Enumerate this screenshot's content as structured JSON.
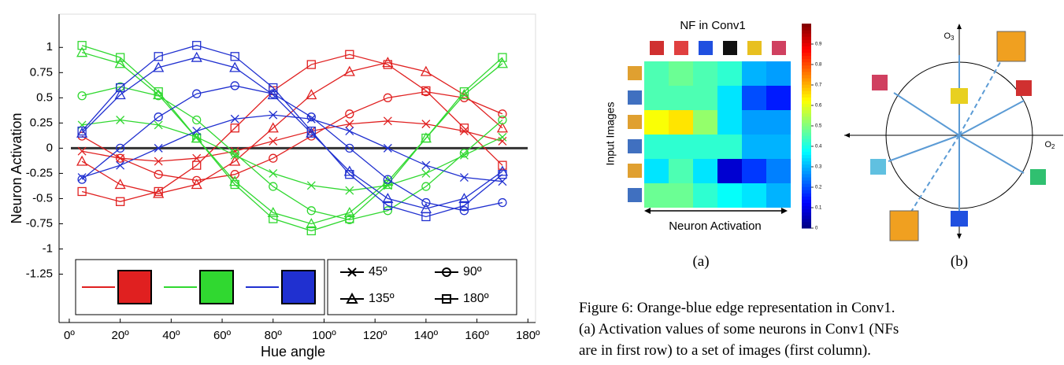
{
  "chart_data": [
    {
      "type": "line",
      "xlabel": "Hue angle",
      "ylabel": "Neuron Activation",
      "xlim": [
        -4,
        183
      ],
      "ylim": [
        -1.73,
        1.33
      ],
      "xticks": [
        {
          "value": 0,
          "label": "0º"
        },
        {
          "value": 20,
          "label": "20º"
        },
        {
          "value": 40,
          "label": "40º"
        },
        {
          "value": 60,
          "label": "60º"
        },
        {
          "value": 80,
          "label": "80º"
        },
        {
          "value": 100,
          "label": "100º"
        },
        {
          "value": 120,
          "label": "120º"
        },
        {
          "value": 140,
          "label": "140º"
        },
        {
          "value": 160,
          "label": "160º"
        },
        {
          "value": 180,
          "label": "180º"
        }
      ],
      "yticks": [
        1,
        0.75,
        0.5,
        0.25,
        0,
        -0.25,
        -0.5,
        -0.75,
        -1,
        -1.25
      ],
      "x": [
        5,
        20,
        35,
        50,
        65,
        80,
        95,
        110,
        125,
        140,
        155,
        170
      ],
      "series": [
        {
          "color": "#e02020",
          "marker": "x",
          "values": [
            -0.03,
            -0.1,
            -0.13,
            -0.1,
            -0.03,
            0.07,
            0.17,
            0.24,
            0.27,
            0.24,
            0.17,
            0.07
          ]
        },
        {
          "color": "#e02020",
          "marker": "circle",
          "values": [
            0.12,
            -0.1,
            -0.26,
            -0.32,
            -0.26,
            -0.1,
            0.12,
            0.34,
            0.5,
            0.56,
            0.5,
            0.34
          ]
        },
        {
          "color": "#e02020",
          "marker": "triangle",
          "values": [
            -0.13,
            -0.36,
            -0.45,
            -0.36,
            -0.13,
            0.2,
            0.53,
            0.76,
            0.85,
            0.76,
            0.53,
            0.2
          ]
        },
        {
          "color": "#e02020",
          "marker": "square",
          "values": [
            -0.43,
            -0.53,
            -0.43,
            -0.17,
            0.2,
            0.57,
            0.83,
            0.93,
            0.83,
            0.57,
            0.2,
            -0.17
          ]
        },
        {
          "color": "#30d830",
          "marker": "x",
          "values": [
            0.23,
            0.28,
            0.23,
            0.11,
            -0.07,
            -0.25,
            -0.37,
            -0.42,
            -0.37,
            -0.25,
            -0.07,
            0.11
          ]
        },
        {
          "color": "#30d830",
          "marker": "circle",
          "values": [
            0.52,
            0.61,
            0.52,
            0.28,
            -0.05,
            -0.38,
            -0.62,
            -0.71,
            -0.62,
            -0.38,
            -0.05,
            0.28
          ]
        },
        {
          "color": "#30d830",
          "marker": "triangle",
          "values": [
            0.95,
            0.84,
            0.53,
            0.1,
            -0.33,
            -0.64,
            -0.75,
            -0.64,
            -0.33,
            0.1,
            0.53,
            0.84
          ]
        },
        {
          "color": "#30d830",
          "marker": "square",
          "values": [
            1.02,
            0.9,
            0.56,
            0.1,
            -0.36,
            -0.7,
            -0.82,
            -0.7,
            -0.36,
            0.1,
            0.56,
            0.9
          ]
        },
        {
          "color": "#2030d0",
          "marker": "x",
          "values": [
            -0.29,
            -0.17,
            0,
            0.17,
            0.29,
            0.33,
            0.29,
            0.17,
            0,
            -0.17,
            -0.29,
            -0.33
          ]
        },
        {
          "color": "#2030d0",
          "marker": "circle",
          "values": [
            -0.31,
            0,
            0.31,
            0.54,
            0.62,
            0.54,
            0.31,
            0,
            -0.31,
            -0.54,
            -0.62,
            -0.54
          ]
        },
        {
          "color": "#2030d0",
          "marker": "triangle",
          "values": [
            0.15,
            0.53,
            0.8,
            0.9,
            0.8,
            0.53,
            0.15,
            -0.23,
            -0.5,
            -0.6,
            -0.5,
            -0.23
          ]
        },
        {
          "color": "#2030d0",
          "marker": "square",
          "values": [
            0.17,
            0.6,
            0.91,
            1.02,
            0.91,
            0.6,
            0.17,
            -0.26,
            -0.57,
            -0.68,
            -0.57,
            -0.26
          ]
        }
      ],
      "legend": {
        "colors": [
          "#e02020",
          "#30d830",
          "#2030d0"
        ],
        "markers": [
          {
            "marker": "x",
            "label": "45º"
          },
          {
            "marker": "circle",
            "label": "90º"
          },
          {
            "marker": "triangle",
            "label": "135º"
          },
          {
            "marker": "square",
            "label": "180º"
          }
        ]
      }
    },
    {
      "type": "heatmap",
      "title": "NF in Conv1",
      "xlabel": "Neuron Activation",
      "ylabel": "Input Images",
      "panel": "(a)",
      "values": [
        [
          0.45,
          0.48,
          0.45,
          0.42,
          0.3,
          0.28
        ],
        [
          0.45,
          0.45,
          0.45,
          0.35,
          0.2,
          0.15
        ],
        [
          0.62,
          0.65,
          0.52,
          0.35,
          0.28,
          0.28
        ],
        [
          0.42,
          0.42,
          0.42,
          0.42,
          0.3,
          0.3
        ],
        [
          0.35,
          0.45,
          0.35,
          0.08,
          0.18,
          0.25
        ],
        [
          0.48,
          0.48,
          0.42,
          0.38,
          0.35,
          0.3
        ]
      ],
      "colorbar": {
        "lim": [
          0,
          1
        ],
        "ticks": [
          0,
          0.1,
          0.2,
          0.3,
          0.4,
          0.5,
          0.6,
          0.7,
          0.8,
          0.9
        ]
      }
    }
  ],
  "diagram": {
    "panel": "(b)",
    "vertical_axis": {
      "label": "O",
      "subscript": "3"
    },
    "horizontal_axis": {
      "label": "O",
      "subscript": "2"
    }
  },
  "caption": {
    "lines": [
      "Figure 6: Orange-blue edge representation in Conv1.",
      "(a) Activation values of some neurons in Conv1 (NFs",
      "are in first row) to a set of images (first column)."
    ]
  }
}
